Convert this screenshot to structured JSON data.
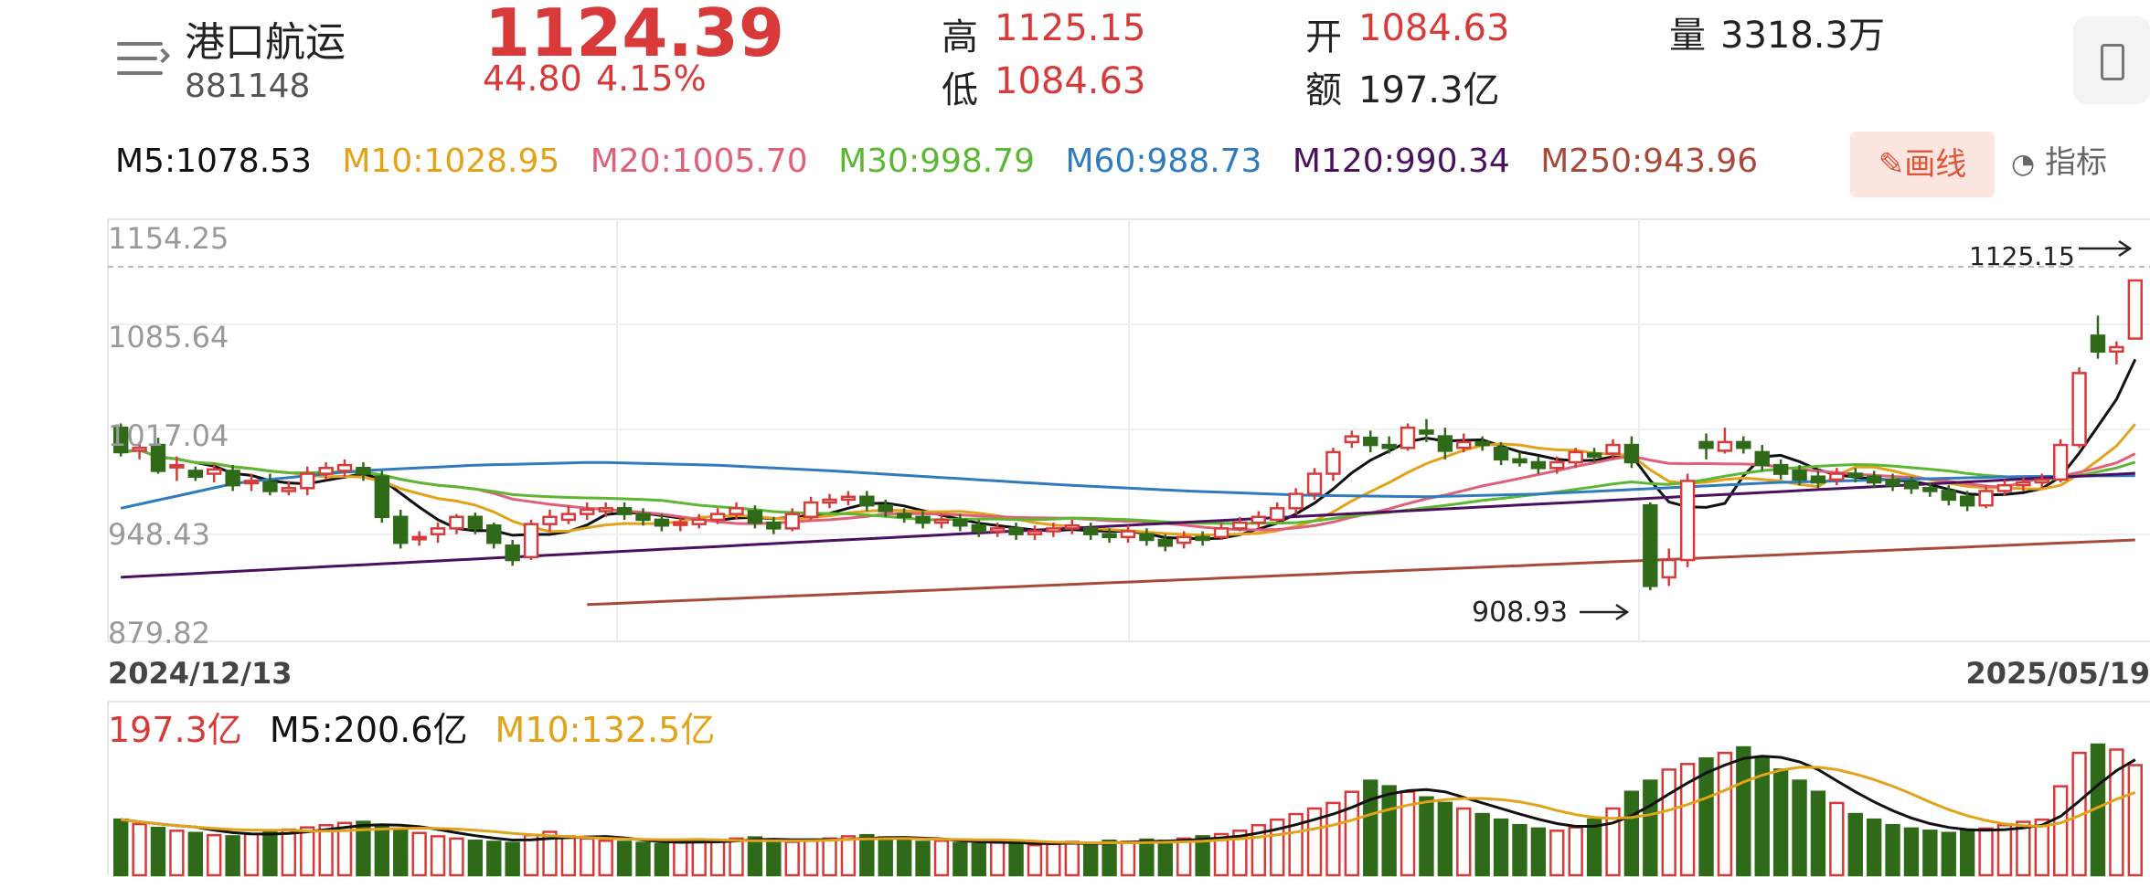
{
  "header": {
    "stock_name": "港口航运",
    "stock_code": "881148",
    "price": "1124.39",
    "change": "44.80",
    "change_pct": "4.15%",
    "high_label": "高",
    "high_value": "1125.15",
    "low_label": "低",
    "low_value": "1084.63",
    "open_label": "开",
    "open_value": "1084.63",
    "amount_label": "额",
    "amount_value": "197.3亿",
    "volume_label": "量",
    "volume_value": "3318.3万",
    "menu_icon": "list-menu-icon",
    "device_icon": "phone-landscape-icon"
  },
  "toolbar": {
    "draw_label": "画线",
    "draw_icon": "pencil-icon",
    "indicator_label": "指标",
    "indicator_icon": "gauge-icon"
  },
  "ma_legend": [
    {
      "text": "M5:1078.53",
      "color": "#111111"
    },
    {
      "text": "M10:1028.95",
      "color": "#e2a21a"
    },
    {
      "text": "M20:1005.70",
      "color": "#e0607a"
    },
    {
      "text": "M30:998.79",
      "color": "#5cb833"
    },
    {
      "text": "M60:988.73",
      "color": "#2f7bbd"
    },
    {
      "text": "M120:990.34",
      "color": "#4b1060"
    },
    {
      "text": "M250:943.96",
      "color": "#a84a3a"
    }
  ],
  "volume_legend": [
    {
      "text": "197.3亿",
      "color": "#d83a3a"
    },
    {
      "text": "M5:200.6亿",
      "color": "#111111"
    },
    {
      "text": "M10:132.5亿",
      "color": "#e2a21a"
    }
  ],
  "chart_data": {
    "type": "candlestick",
    "y_ticks": [
      "1154.25",
      "1085.64",
      "1017.04",
      "948.43",
      "879.82"
    ],
    "ylim": [
      879.82,
      1154.25
    ],
    "x_start_label": "2024/12/13",
    "x_end_label": "2025/05/19",
    "max_annotation": "1125.15",
    "min_annotation": "908.93",
    "candles": [
      [
        1022,
        1005,
        1025,
        1002
      ],
      [
        1006,
        1008,
        1012,
        1000
      ],
      [
        1010,
        992,
        1015,
        990
      ],
      [
        995,
        996,
        1002,
        985
      ],
      [
        992,
        988,
        995,
        985
      ],
      [
        990,
        993,
        997,
        984
      ],
      [
        992,
        982,
        996,
        978
      ],
      [
        984,
        985,
        990,
        978
      ],
      [
        984,
        978,
        990,
        975
      ],
      [
        978,
        980,
        985,
        975
      ],
      [
        980,
        990,
        995,
        975
      ],
      [
        990,
        994,
        998,
        986
      ],
      [
        992,
        996,
        1000,
        988
      ],
      [
        994,
        990,
        998,
        985
      ],
      [
        988,
        960,
        992,
        956
      ],
      [
        960,
        942,
        965,
        938
      ],
      [
        945,
        946,
        950,
        940
      ],
      [
        948,
        952,
        956,
        942
      ],
      [
        952,
        960,
        962,
        948
      ],
      [
        960,
        952,
        963,
        948
      ],
      [
        954,
        942,
        956,
        938
      ],
      [
        940,
        930,
        944,
        926
      ],
      [
        932,
        955,
        958,
        930
      ],
      [
        955,
        960,
        965,
        950
      ],
      [
        958,
        962,
        968,
        955
      ],
      [
        962,
        965,
        970,
        958
      ],
      [
        964,
        966,
        970,
        960
      ],
      [
        966,
        962,
        970,
        958
      ],
      [
        962,
        958,
        966,
        954
      ],
      [
        958,
        954,
        962,
        950
      ],
      [
        955,
        956,
        960,
        950
      ],
      [
        955,
        958,
        962,
        952
      ],
      [
        958,
        962,
        966,
        955
      ],
      [
        962,
        966,
        970,
        958
      ],
      [
        964,
        956,
        968,
        952
      ],
      [
        956,
        952,
        960,
        948
      ],
      [
        952,
        962,
        966,
        950
      ],
      [
        960,
        970,
        974,
        958
      ],
      [
        970,
        972,
        976,
        966
      ],
      [
        972,
        974,
        978,
        968
      ],
      [
        974,
        968,
        978,
        964
      ],
      [
        968,
        964,
        972,
        960
      ],
      [
        962,
        960,
        966,
        956
      ],
      [
        960,
        956,
        964,
        952
      ],
      [
        956,
        958,
        962,
        952
      ],
      [
        958,
        954,
        962,
        950
      ],
      [
        954,
        950,
        958,
        946
      ],
      [
        950,
        952,
        956,
        946
      ],
      [
        952,
        948,
        956,
        944
      ],
      [
        948,
        950,
        954,
        944
      ],
      [
        950,
        952,
        956,
        946
      ],
      [
        952,
        954,
        958,
        948
      ],
      [
        952,
        948,
        956,
        944
      ],
      [
        948,
        946,
        952,
        942
      ],
      [
        946,
        950,
        954,
        942
      ],
      [
        948,
        944,
        952,
        940
      ],
      [
        944,
        940,
        948,
        936
      ],
      [
        942,
        946,
        950,
        938
      ],
      [
        946,
        944,
        950,
        940
      ],
      [
        946,
        952,
        956,
        944
      ],
      [
        952,
        956,
        960,
        950
      ],
      [
        956,
        960,
        964,
        952
      ],
      [
        958,
        966,
        970,
        956
      ],
      [
        966,
        976,
        980,
        962
      ],
      [
        976,
        990,
        994,
        972
      ],
      [
        990,
        1005,
        1008,
        985
      ],
      [
        1012,
        1016,
        1020,
        1008
      ],
      [
        1015,
        1010,
        1020,
        1005
      ],
      [
        1010,
        1008,
        1016,
        1004
      ],
      [
        1008,
        1022,
        1025,
        1006
      ],
      [
        1020,
        1018,
        1028,
        1012
      ],
      [
        1016,
        1006,
        1022,
        1000
      ],
      [
        1008,
        1012,
        1018,
        1005
      ],
      [
        1012,
        1010,
        1016,
        1006
      ],
      [
        1008,
        1000,
        1012,
        996
      ],
      [
        1000,
        998,
        1005,
        995
      ],
      [
        998,
        994,
        1002,
        990
      ],
      [
        994,
        998,
        1002,
        990
      ],
      [
        998,
        1005,
        1008,
        994
      ],
      [
        1004,
        1002,
        1008,
        998
      ],
      [
        1004,
        1010,
        1014,
        1000
      ],
      [
        1010,
        998,
        1016,
        994
      ],
      [
        968,
        912,
        970,
        908.93
      ],
      [
        918,
        930,
        938,
        912
      ],
      [
        930,
        985,
        990,
        925
      ],
      [
        1012,
        1008,
        1018,
        1000
      ],
      [
        1006,
        1012,
        1022,
        1004
      ],
      [
        1012,
        1008,
        1016,
        1004
      ],
      [
        1005,
        996,
        1010,
        992
      ],
      [
        996,
        990,
        1000,
        986
      ],
      [
        992,
        986,
        996,
        982
      ],
      [
        988,
        984,
        992,
        980
      ],
      [
        986,
        990,
        994,
        982
      ],
      [
        990,
        988,
        994,
        984
      ],
      [
        988,
        984,
        992,
        980
      ],
      [
        986,
        982,
        990,
        978
      ],
      [
        984,
        980,
        988,
        976
      ],
      [
        980,
        978,
        984,
        974
      ],
      [
        978,
        972,
        982,
        968
      ],
      [
        974,
        968,
        978,
        964
      ],
      [
        968,
        978,
        982,
        966
      ],
      [
        978,
        982,
        986,
        975
      ],
      [
        982,
        984,
        988,
        978
      ],
      [
        984,
        986,
        990,
        980
      ],
      [
        986,
        1010,
        1014,
        984
      ],
      [
        1010,
        1060,
        1064,
        1008
      ],
      [
        1086,
        1075,
        1100,
        1070
      ],
      [
        1075,
        1078,
        1082,
        1066
      ],
      [
        1084,
        1124.39,
        1125.15,
        1084
      ]
    ],
    "volume": [
      100,
      92,
      85,
      80,
      76,
      72,
      70,
      74,
      78,
      82,
      86,
      90,
      94,
      96,
      88,
      82,
      76,
      70,
      66,
      62,
      60,
      58,
      72,
      78,
      70,
      66,
      62,
      60,
      58,
      56,
      60,
      64,
      62,
      66,
      68,
      64,
      60,
      62,
      66,
      70,
      72,
      68,
      64,
      60,
      62,
      58,
      56,
      60,
      58,
      54,
      56,
      60,
      58,
      62,
      60,
      64,
      62,
      66,
      70,
      74,
      80,
      90,
      100,
      110,
      120,
      130,
      150,
      170,
      160,
      150,
      140,
      130,
      120,
      110,
      100,
      90,
      84,
      80,
      86,
      100,
      120,
      150,
      170,
      190,
      200,
      210,
      220,
      230,
      210,
      190,
      170,
      150,
      130,
      110,
      100,
      90,
      84,
      80,
      76,
      80,
      84,
      90,
      96,
      100,
      160,
      220,
      235,
      226,
      198
    ],
    "ma_series": [
      {
        "name": "M5",
        "color": "#111111"
      },
      {
        "name": "M10",
        "color": "#e2a21a"
      },
      {
        "name": "M20",
        "color": "#e0607a"
      },
      {
        "name": "M30",
        "color": "#5cb833"
      },
      {
        "name": "M60",
        "color": "#2f7bbd"
      },
      {
        "name": "M120",
        "color": "#4b1060"
      },
      {
        "name": "M250",
        "color": "#a84a3a"
      }
    ],
    "m120_endpoints": [
      918,
      990.34
    ],
    "m250_endpoints": [
      899,
      943.96
    ],
    "m60_path": [
      966,
      984,
      992,
      996,
      998,
      996,
      992,
      987,
      982,
      978,
      975,
      974,
      976,
      980,
      984,
      986,
      988,
      988.73
    ]
  }
}
